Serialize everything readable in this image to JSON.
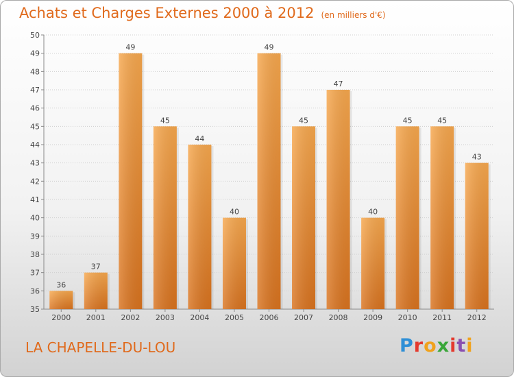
{
  "title": "Achats et Charges Externes 2000 à 2012",
  "subtitle": "(en milliers d'€)",
  "location": "LA CHAPELLE-DU-LOU",
  "logo": {
    "letters": [
      "P",
      "r",
      "o",
      "x",
      "i",
      "t",
      "i"
    ],
    "colors": [
      "#2e8fd6",
      "#e43a2e",
      "#f0a21d",
      "#3aa63a",
      "#e43a2e",
      "#8a4fb0",
      "#f0a21d"
    ]
  },
  "colors": {
    "bar": "#f39a3a",
    "title": "#e06a1c"
  },
  "chart_data": {
    "type": "bar",
    "categories": [
      "2000",
      "2001",
      "2002",
      "2003",
      "2004",
      "2005",
      "2006",
      "2007",
      "2008",
      "2009",
      "2010",
      "2011",
      "2012"
    ],
    "values": [
      36,
      37,
      49,
      45,
      44,
      40,
      49,
      45,
      47,
      40,
      45,
      45,
      43
    ],
    "ylim": [
      35,
      50
    ],
    "yticks": [
      35,
      36,
      37,
      38,
      39,
      40,
      41,
      42,
      43,
      44,
      45,
      46,
      47,
      48,
      49,
      50
    ],
    "grid": true
  }
}
